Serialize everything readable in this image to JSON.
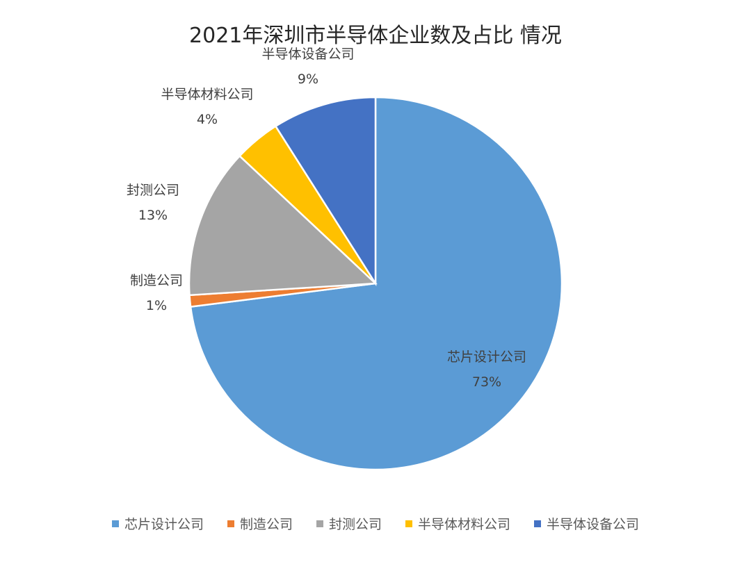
{
  "chart_data": {
    "type": "pie",
    "title": "2021年深圳市半导体企业数及占比 情况",
    "slices": [
      {
        "label": "芯片设计公司",
        "value": 73,
        "display": "73%",
        "color": "#5b9bd5"
      },
      {
        "label": "制造公司",
        "value": 1,
        "display": "1%",
        "color": "#ed7d31"
      },
      {
        "label": "封测公司",
        "value": 13,
        "display": "13%",
        "color": "#a5a5a5"
      },
      {
        "label": "半导体材料公司",
        "value": 4,
        "display": "4%",
        "color": "#ffc000"
      },
      {
        "label": "半导体设备公司",
        "value": 9,
        "display": "9%",
        "color": "#4472c4"
      }
    ],
    "legend_position": "bottom",
    "start_angle_deg": 0,
    "direction": "clockwise"
  }
}
